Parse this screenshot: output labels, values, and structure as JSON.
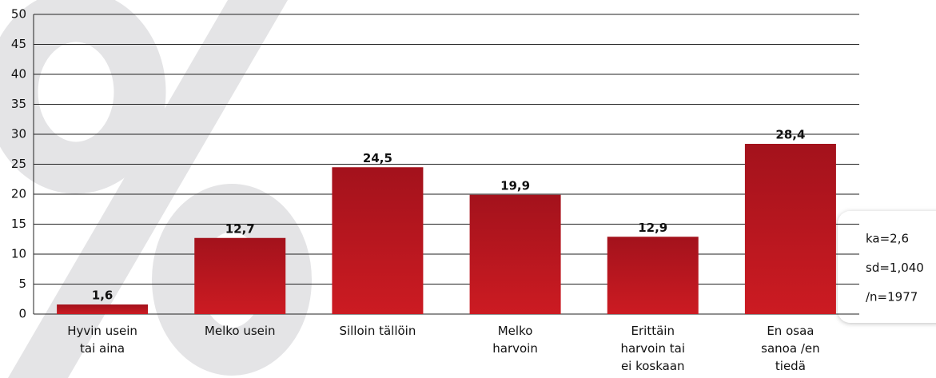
{
  "chart_data": {
    "type": "bar",
    "categories": [
      "Hyvin usein\ntai aina",
      "Melko usein",
      "Silloin tällöin",
      "Melko\nharvoin",
      "Erittäin\nharvoin tai\nei koskaan",
      "En osaa\nsanoa /en\ntiedä"
    ],
    "values": [
      1.6,
      12.7,
      24.5,
      19.9,
      12.9,
      28.4
    ],
    "value_labels": [
      "1,6",
      "12,7",
      "24,5",
      "19,9",
      "12,9",
      "28,4"
    ],
    "color": "#b5161f",
    "ylim": [
      0,
      50
    ],
    "yticks": [
      0,
      5,
      10,
      15,
      20,
      25,
      30,
      35,
      40,
      45,
      50
    ],
    "grid": true,
    "annotations": [
      "ka=2,6",
      "sd=1,040",
      "/n=1977"
    ]
  }
}
